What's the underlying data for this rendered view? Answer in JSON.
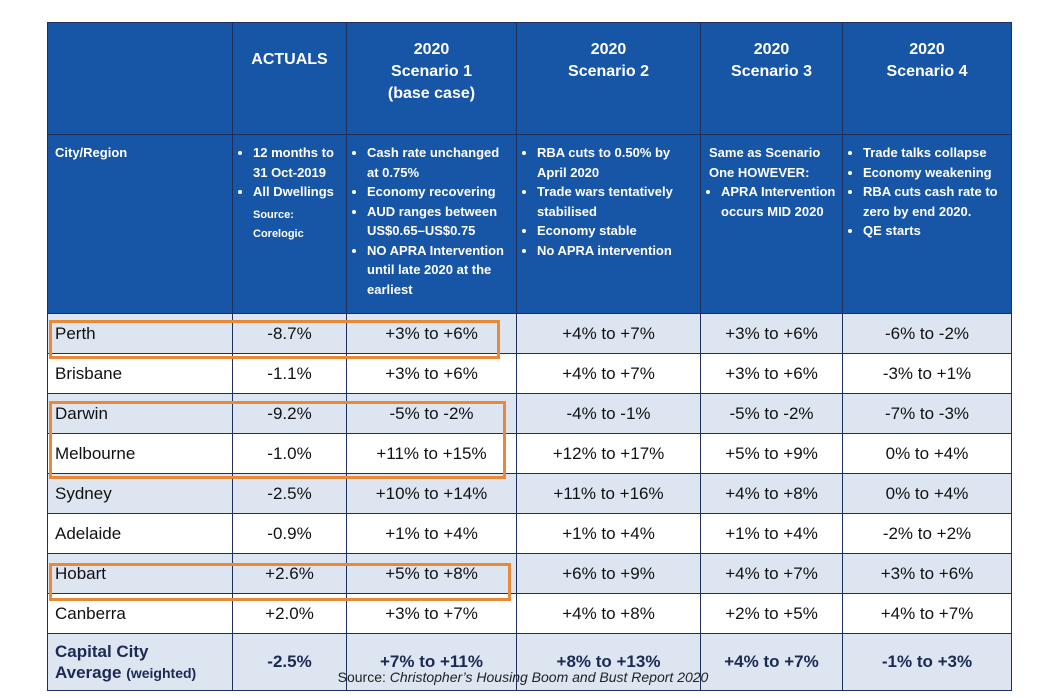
{
  "header": {
    "actuals": [
      "ACTUALS"
    ],
    "scenarios": [
      {
        "lines": [
          "2020",
          "Scenario 1",
          "(base case)"
        ]
      },
      {
        "lines": [
          "2020",
          "Scenario 2"
        ]
      },
      {
        "lines": [
          "2020",
          "Scenario 3"
        ]
      },
      {
        "lines": [
          "2020",
          "Scenario 4"
        ]
      }
    ]
  },
  "subheader": {
    "city_label": "City/Region",
    "actuals_bullets": [
      "12 months to 31 Oct-2019",
      "All Dwellings"
    ],
    "actuals_source": "Source: Corelogic",
    "s1_bullets": [
      "Cash rate unchanged at 0.75%",
      "Economy recovering",
      "AUD ranges between US$0.65–US$0.75",
      "NO APRA Intervention until late 2020 at the earliest"
    ],
    "s2_bullets": [
      "RBA cuts to 0.50% by April 2020",
      "Trade wars tentatively stabilised",
      "Economy stable",
      "No APRA intervention"
    ],
    "s3_intro": "Same as Scenario One HOWEVER:",
    "s3_bullets": [
      "APRA Intervention occurs MID 2020"
    ],
    "s4_bullets": [
      "Trade talks collapse",
      "Economy weakening",
      "RBA cuts cash rate to zero by end 2020.",
      "QE starts"
    ]
  },
  "rows": [
    {
      "city": "Perth",
      "actual": "-8.7%",
      "s1": "+3% to +6%",
      "s2": "+4% to +7%",
      "s3": "+3% to +6%",
      "s4": "-6% to -2%"
    },
    {
      "city": "Brisbane",
      "actual": "-1.1%",
      "s1": "+3% to +6%",
      "s2": "+4% to +7%",
      "s3": "+3% to +6%",
      "s4": "-3% to +1%"
    },
    {
      "city": "Darwin",
      "actual": "-9.2%",
      "s1": "-5% to -2%",
      "s2": "-4% to -1%",
      "s3": "-5% to -2%",
      "s4": "-7% to -3%"
    },
    {
      "city": "Melbourne",
      "actual": "-1.0%",
      "s1": "+11% to +15%",
      "s2": "+12% to +17%",
      "s3": "+5% to +9%",
      "s4": "0% to +4%"
    },
    {
      "city": "Sydney",
      "actual": "-2.5%",
      "s1": "+10% to +14%",
      "s2": "+11% to +16%",
      "s3": "+4% to +8%",
      "s4": "0% to +4%"
    },
    {
      "city": "Adelaide",
      "actual": "-0.9%",
      "s1": "+1% to +4%",
      "s2": "+1% to +4%",
      "s3": "+1% to +4%",
      "s4": "-2% to +2%"
    },
    {
      "city": "Hobart",
      "actual": "+2.6%",
      "s1": "+5% to +8%",
      "s2": "+6% to +9%",
      "s3": "+4% to +7%",
      "s4": "+3% to +6%"
    },
    {
      "city": "Canberra",
      "actual": "+2.0%",
      "s1": "+3% to +7%",
      "s2": "+4% to +8%",
      "s3": "+2% to +5%",
      "s4": "+4% to +7%"
    }
  ],
  "average": {
    "label_line1": "Capital City",
    "label_line2": "Average",
    "label_weighted": "(weighted)",
    "actual": "-2.5%",
    "s1": "+7% to +11%",
    "s2": "+8% to +13%",
    "s3": "+4% to +7%",
    "s4": "-1% to +3%"
  },
  "footer": {
    "prefix": "Source: ",
    "title": "Christopher’s Housing Boom and Bust Report 2020"
  },
  "colors": {
    "header_bg": "#1756a6",
    "shade_row": "#dde5f1",
    "highlight": "#e8893a"
  }
}
